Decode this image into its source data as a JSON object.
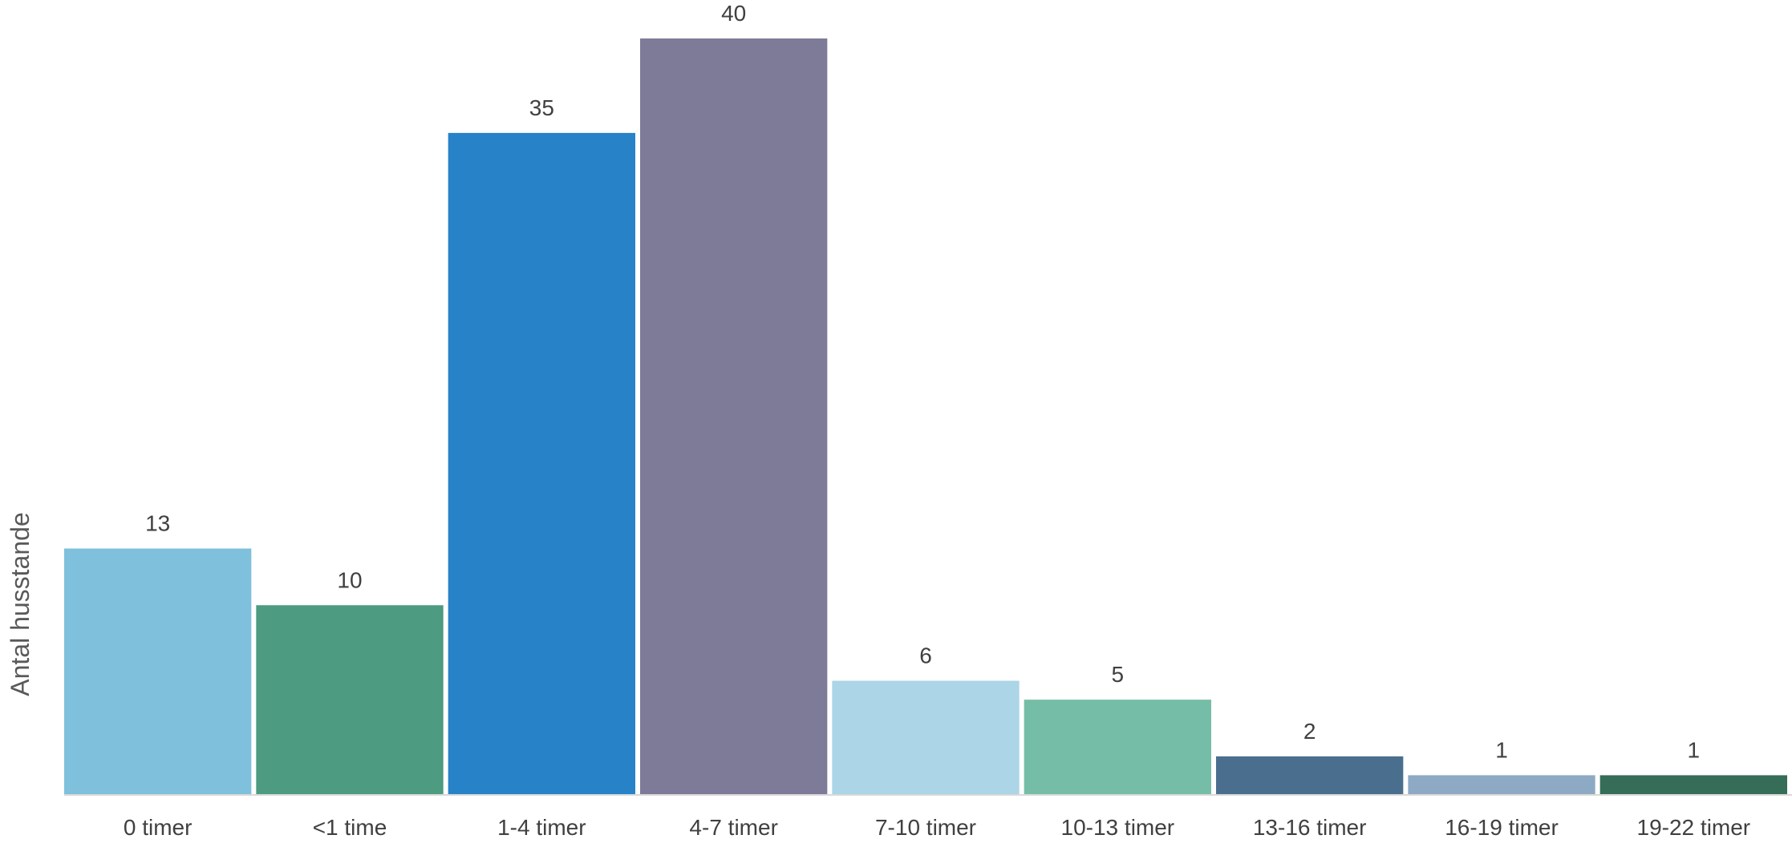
{
  "chart_data": {
    "type": "bar",
    "title": "",
    "xlabel": "",
    "ylabel": "Antal husstande",
    "categories": [
      "0 timer",
      "<1 time",
      "1-4 timer",
      "4-7 timer",
      "7-10 timer",
      "10-13 timer",
      "13-16 timer",
      "16-19 timer",
      "19-22 timer"
    ],
    "values": [
      13,
      10,
      35,
      40,
      6,
      5,
      2,
      1,
      1
    ],
    "colors": [
      "#7fc0dc",
      "#4d9b80",
      "#2782c8",
      "#7e7b99",
      "#acd5e7",
      "#75bda6",
      "#4a6f8e",
      "#8ea9c4",
      "#356d58"
    ],
    "ylim": [
      0,
      40
    ],
    "grid": false,
    "legend": "none"
  }
}
